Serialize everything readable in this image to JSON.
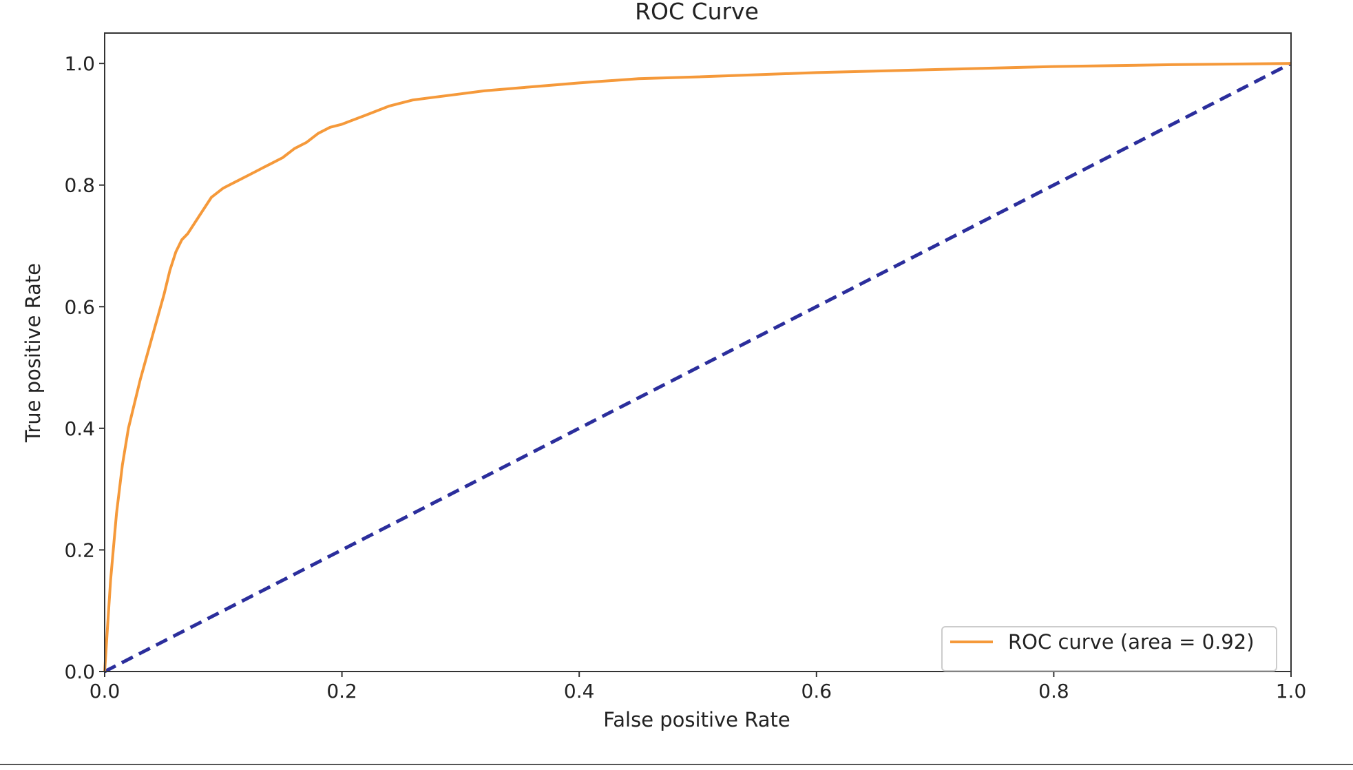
{
  "chart_data": {
    "type": "line",
    "title": "ROC Curve",
    "xlabel": "False positive Rate",
    "ylabel": "True positive Rate",
    "xlim": [
      0.0,
      1.0
    ],
    "ylim": [
      0.0,
      1.05
    ],
    "x_ticks": [
      0.0,
      0.2,
      0.4,
      0.6,
      0.8,
      1.0
    ],
    "x_tick_labels": [
      "0.0",
      "0.2",
      "0.4",
      "0.6",
      "0.8",
      "1.0"
    ],
    "y_ticks": [
      0.0,
      0.2,
      0.4,
      0.6,
      0.8,
      1.0
    ],
    "y_tick_labels": [
      "0.0",
      "0.2",
      "0.4",
      "0.6",
      "0.8",
      "1.0"
    ],
    "grid": false,
    "legend_position": "lower-right",
    "series": [
      {
        "name": "ROC curve (area = 0.92)",
        "color": "#f5993a",
        "style": "solid",
        "x": [
          0.0,
          0.002,
          0.005,
          0.01,
          0.015,
          0.02,
          0.025,
          0.03,
          0.04,
          0.05,
          0.055,
          0.06,
          0.065,
          0.07,
          0.08,
          0.09,
          0.1,
          0.11,
          0.12,
          0.13,
          0.14,
          0.15,
          0.16,
          0.17,
          0.18,
          0.19,
          0.2,
          0.22,
          0.24,
          0.26,
          0.28,
          0.3,
          0.32,
          0.35,
          0.4,
          0.45,
          0.5,
          0.6,
          0.7,
          0.8,
          0.9,
          1.0
        ],
        "y": [
          0.0,
          0.06,
          0.15,
          0.26,
          0.34,
          0.4,
          0.44,
          0.48,
          0.55,
          0.62,
          0.66,
          0.69,
          0.71,
          0.72,
          0.75,
          0.78,
          0.795,
          0.805,
          0.815,
          0.825,
          0.835,
          0.845,
          0.86,
          0.87,
          0.885,
          0.895,
          0.9,
          0.915,
          0.93,
          0.94,
          0.945,
          0.95,
          0.955,
          0.96,
          0.968,
          0.975,
          0.978,
          0.985,
          0.99,
          0.995,
          0.998,
          1.0
        ]
      },
      {
        "name": "",
        "color": "#2b2e9c",
        "style": "dashed",
        "x": [
          0.0,
          1.0
        ],
        "y": [
          0.0,
          1.0
        ]
      }
    ],
    "legend_entries": [
      "ROC curve (area = 0.92)"
    ]
  }
}
